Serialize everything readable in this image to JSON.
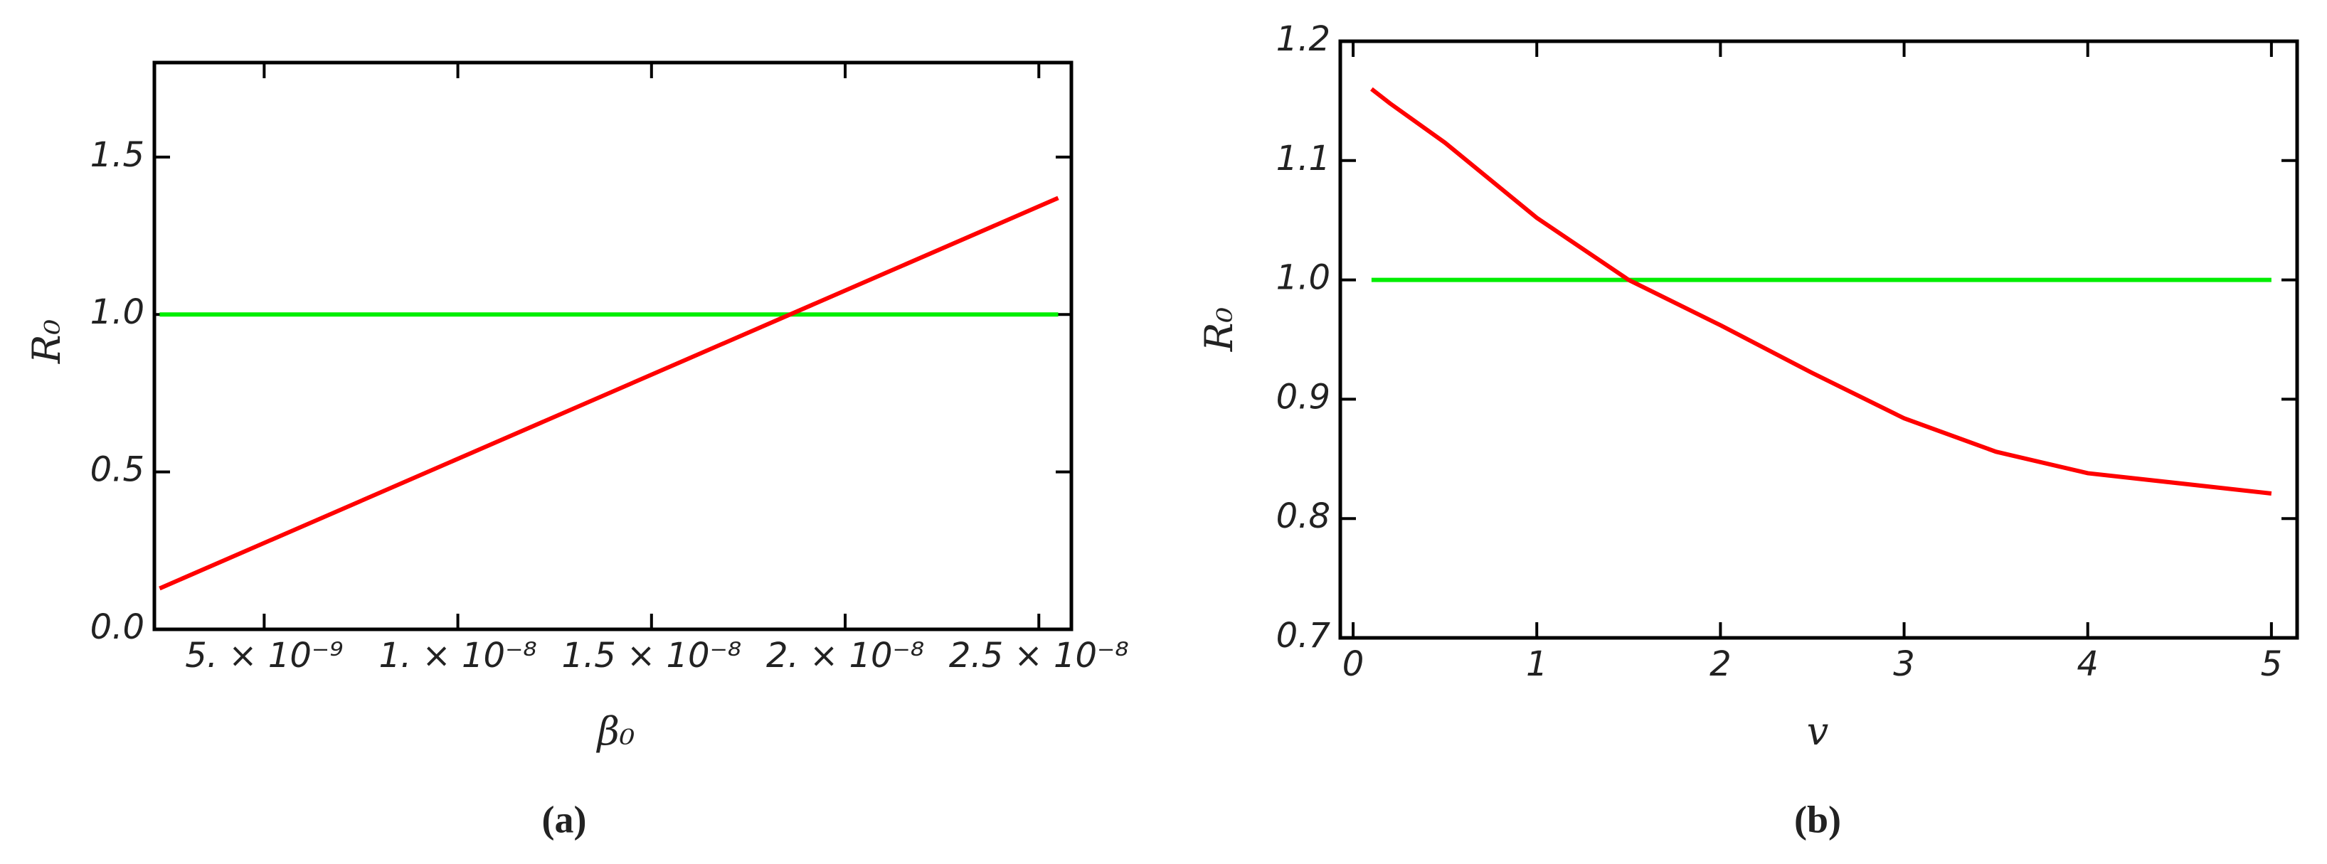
{
  "chart_data": [
    {
      "type": "line",
      "caption": "(a)",
      "xlabel": "β₀",
      "ylabel": "R₀",
      "x": [
        2.3e-09,
        2.55e-08
      ],
      "series": [
        {
          "color": "#ff0000",
          "values": [
            0.13,
            1.37
          ]
        },
        {
          "color": "#00ee00",
          "values": [
            1,
            1
          ]
        }
      ],
      "xlim": [
        2.165e-09,
        2.584e-08
      ],
      "ylim": [
        0,
        1.8
      ],
      "xticks": [
        {
          "value": 5e-09,
          "label": "5. × 10⁻⁹"
        },
        {
          "value": 1e-08,
          "label": "1. × 10⁻⁸"
        },
        {
          "value": 1.5e-08,
          "label": "1.5 × 10⁻⁸"
        },
        {
          "value": 2e-08,
          "label": "2. × 10⁻⁸"
        },
        {
          "value": 2.5e-08,
          "label": "2.5 × 10⁻⁸"
        }
      ],
      "yticks": [
        {
          "value": 0,
          "label": "0.0"
        },
        0.5,
        {
          "value": 1,
          "label": "1.0"
        },
        1.5
      ]
    },
    {
      "type": "line",
      "caption": "(b)",
      "xlabel": "v",
      "ylabel": "R₀",
      "x": [
        0.1,
        0.2,
        0.5,
        1,
        1.5,
        2,
        2.5,
        3,
        3.5,
        4,
        5
      ],
      "series": [
        {
          "color": "#ff0000",
          "values": [
            1.16,
            1.148,
            1.115,
            1.052,
            1.0,
            0.962,
            0.922,
            0.884,
            0.856,
            0.838,
            0.821
          ]
        },
        {
          "color": "#00ee00",
          "values": [
            1,
            1,
            1,
            1,
            1,
            1,
            1,
            1,
            1,
            1,
            1
          ]
        }
      ],
      "xlim": [
        -0.07,
        5.14
      ],
      "ylim": [
        0.7,
        1.2
      ],
      "xticks": [
        0,
        1,
        2,
        3,
        4,
        5
      ],
      "yticks": [
        0.7,
        0.8,
        0.9,
        {
          "value": 1,
          "label": "1.0"
        },
        1.1,
        1.2
      ]
    }
  ]
}
